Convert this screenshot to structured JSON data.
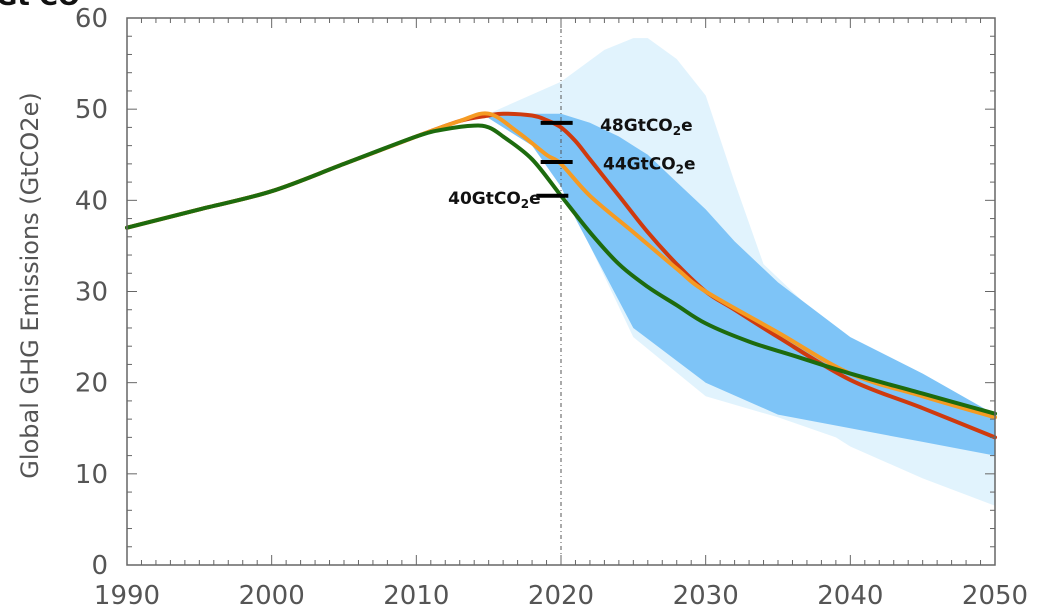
{
  "chart_data": {
    "type": "line",
    "top_clipped_text": "Gt CO",
    "ylabel": "Global GHG Emissions (GtCO2e)",
    "xlim": [
      1990,
      2050
    ],
    "ylim": [
      0,
      60
    ],
    "x_ticks": [
      1990,
      2000,
      2010,
      2020,
      2030,
      2040,
      2050
    ],
    "y_ticks": [
      0,
      10,
      20,
      30,
      40,
      50,
      60
    ],
    "reference_line_x": 2020,
    "bands": [
      {
        "id": "outer",
        "color": "#e1f3fd",
        "upper": [
          [
            2015,
            49.5
          ],
          [
            2020,
            53
          ],
          [
            2023,
            56.5
          ],
          [
            2025,
            57.8
          ],
          [
            2026,
            57.8
          ],
          [
            2028,
            55.5
          ],
          [
            2030,
            51.5
          ],
          [
            2032,
            42
          ],
          [
            2034,
            33
          ],
          [
            2037,
            28.5
          ],
          [
            2040,
            25
          ],
          [
            2045,
            21
          ],
          [
            2050,
            16.5
          ]
        ],
        "lower": [
          [
            2050,
            6.5
          ],
          [
            2045,
            9.5
          ],
          [
            2040,
            13
          ],
          [
            2039,
            14
          ],
          [
            2035,
            16.2
          ],
          [
            2030,
            18.5
          ],
          [
            2025,
            25
          ],
          [
            2022,
            35
          ],
          [
            2020,
            42
          ],
          [
            2018,
            46
          ],
          [
            2015,
            49
          ]
        ]
      },
      {
        "id": "inner",
        "color": "#7ec4f7",
        "upper": [
          [
            2015,
            49.5
          ],
          [
            2018,
            49.5
          ],
          [
            2020,
            49.5
          ],
          [
            2022,
            48.5
          ],
          [
            2024,
            47
          ],
          [
            2026,
            45
          ],
          [
            2028,
            42
          ],
          [
            2030,
            39
          ],
          [
            2032,
            35.5
          ],
          [
            2035,
            31
          ],
          [
            2040,
            25
          ],
          [
            2045,
            21
          ],
          [
            2050,
            16.5
          ]
        ],
        "lower": [
          [
            2050,
            12
          ],
          [
            2045,
            13.5
          ],
          [
            2040,
            15
          ],
          [
            2035,
            16.5
          ],
          [
            2030,
            20
          ],
          [
            2025,
            26
          ],
          [
            2023,
            32
          ],
          [
            2021,
            38
          ],
          [
            2020,
            41.5
          ],
          [
            2018,
            46
          ],
          [
            2015,
            49
          ]
        ]
      }
    ],
    "series": [
      {
        "color": "#cf3a0e",
        "points": [
          [
            1990,
            37
          ],
          [
            1995,
            39
          ],
          [
            2000,
            41
          ],
          [
            2005,
            44
          ],
          [
            2010,
            47
          ],
          [
            2013,
            48.7
          ],
          [
            2015,
            49.3
          ],
          [
            2016,
            49.5
          ],
          [
            2018,
            49.3
          ],
          [
            2019,
            48.8
          ],
          [
            2020,
            48
          ],
          [
            2021,
            46.5
          ],
          [
            2022,
            44.5
          ],
          [
            2024,
            40.5
          ],
          [
            2026,
            36.5
          ],
          [
            2028,
            33
          ],
          [
            2030,
            30
          ],
          [
            2032,
            28
          ],
          [
            2035,
            25
          ],
          [
            2040,
            20.3
          ],
          [
            2045,
            17.2
          ],
          [
            2050,
            14
          ]
        ]
      },
      {
        "color": "#f59b23",
        "points": [
          [
            1990,
            37
          ],
          [
            1995,
            39
          ],
          [
            2000,
            41
          ],
          [
            2005,
            44
          ],
          [
            2010,
            47
          ],
          [
            2013,
            48.7
          ],
          [
            2015,
            49.5
          ],
          [
            2017,
            47.5
          ],
          [
            2019,
            45
          ],
          [
            2020,
            44
          ],
          [
            2022,
            40.5
          ],
          [
            2025,
            36.5
          ],
          [
            2028,
            32.5
          ],
          [
            2030,
            30
          ],
          [
            2035,
            25.5
          ],
          [
            2040,
            21
          ],
          [
            2045,
            18.5
          ],
          [
            2050,
            16.2
          ]
        ]
      },
      {
        "color": "#1d6b0e",
        "points": [
          [
            1990,
            37
          ],
          [
            1995,
            39
          ],
          [
            2000,
            41
          ],
          [
            2005,
            44
          ],
          [
            2010,
            47
          ],
          [
            2012,
            47.8
          ],
          [
            2014,
            48.2
          ],
          [
            2015,
            48
          ],
          [
            2016,
            47
          ],
          [
            2018,
            44.5
          ],
          [
            2020,
            40.5
          ],
          [
            2022,
            36.5
          ],
          [
            2024,
            33
          ],
          [
            2026,
            30.5
          ],
          [
            2028,
            28.5
          ],
          [
            2030,
            26.5
          ],
          [
            2033,
            24.5
          ],
          [
            2036,
            23
          ],
          [
            2040,
            21
          ],
          [
            2045,
            18.8
          ],
          [
            2050,
            16.6
          ]
        ]
      }
    ],
    "markers": [
      {
        "x": 2019.7,
        "y": 48.5
      },
      {
        "x": 2019.7,
        "y": 44.2
      },
      {
        "x": 2019.4,
        "y": 40.5
      }
    ],
    "annotations": [
      {
        "main": "48GtCO",
        "sub": "2",
        "tail": "e",
        "x": 2022.7,
        "y": 47.6,
        "anchor": "start"
      },
      {
        "main": "44GtCO",
        "sub": "2",
        "tail": "e",
        "x": 2022.9,
        "y": 43.4,
        "anchor": "start"
      },
      {
        "main": "40GtCO",
        "sub": "2",
        "tail": "e",
        "x": 2018.6,
        "y": 39.6,
        "anchor": "end"
      }
    ]
  }
}
